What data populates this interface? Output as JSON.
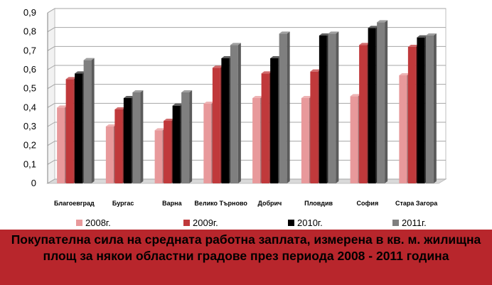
{
  "chart_data": {
    "type": "bar",
    "categories": [
      "Благоевград",
      "Бургас",
      "Варна",
      "Велико Търново",
      "Добрич",
      "Пловдив",
      "София",
      "Стара Загора"
    ],
    "series": [
      {
        "name": "2008г.",
        "color": "#e8999b",
        "values": [
          0.4,
          0.3,
          0.28,
          0.42,
          0.45,
          0.45,
          0.46,
          0.57
        ]
      },
      {
        "name": "2009г.",
        "color": "#c0393b",
        "values": [
          0.55,
          0.39,
          0.33,
          0.61,
          0.58,
          0.59,
          0.73,
          0.72
        ]
      },
      {
        "name": "2010г.",
        "color": "#000000",
        "values": [
          0.58,
          0.45,
          0.41,
          0.66,
          0.66,
          0.78,
          0.82,
          0.77
        ]
      },
      {
        "name": "2011г.",
        "color": "#7f7f7f",
        "values": [
          0.65,
          0.48,
          0.48,
          0.73,
          0.79,
          0.79,
          0.85,
          0.78
        ]
      }
    ],
    "yticks": [
      "0",
      "0,1",
      "0,2",
      "0,3",
      "0,4",
      "0,5",
      "0,6",
      "0,7",
      "0,8",
      "0,9"
    ],
    "ylim": [
      0,
      0.9
    ],
    "grid": true,
    "legend": "bottom",
    "title": "",
    "xlabel": "",
    "ylabel": ""
  },
  "caption": "Покупателна сила на средната работна заплата, измерена в кв. м. жилищна площ за някои областни градове през периода 2008 - 2011 година"
}
